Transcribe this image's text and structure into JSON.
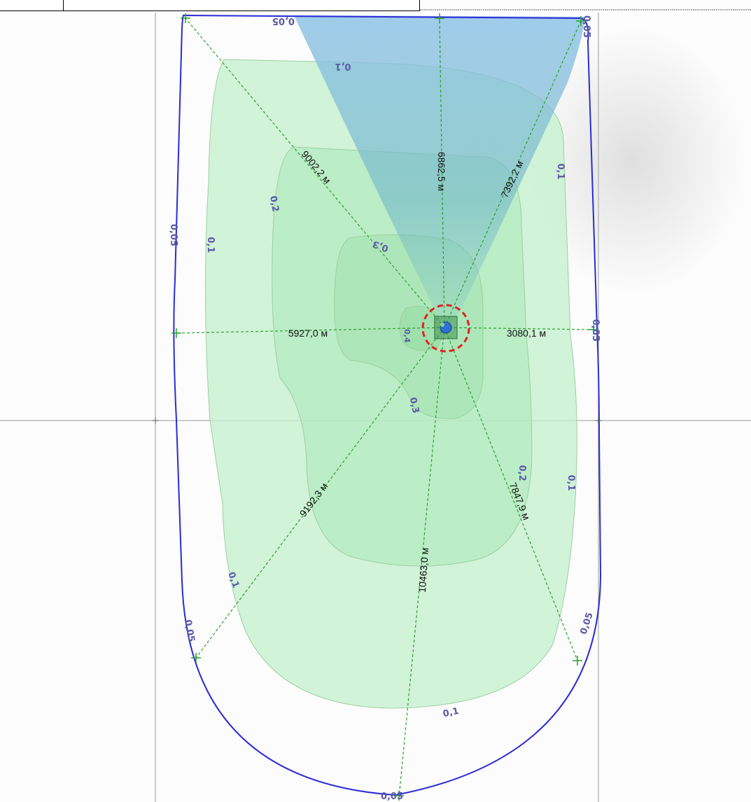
{
  "map": {
    "distances": [
      {
        "label": "9002,2 м"
      },
      {
        "label": "6862,5 м"
      },
      {
        "label": "7392,2 м"
      },
      {
        "label": "5927,0 м"
      },
      {
        "label": "3080,1 м"
      },
      {
        "label": "9192,3 м"
      },
      {
        "label": "10463,0 м"
      },
      {
        "label": "7847,9 м"
      }
    ],
    "isolines": [
      {
        "label": "0,05"
      },
      {
        "label": "0,05"
      },
      {
        "label": "0,05"
      },
      {
        "label": "0,05"
      },
      {
        "label": "0,05"
      },
      {
        "label": "0,05"
      },
      {
        "label": "0,05"
      },
      {
        "label": "0,1"
      },
      {
        "label": "0,1"
      },
      {
        "label": "0,1"
      },
      {
        "label": "0,1"
      },
      {
        "label": "0,1"
      },
      {
        "label": "0,1"
      },
      {
        "label": "0,2"
      },
      {
        "label": "0,2"
      },
      {
        "label": "0,3"
      },
      {
        "label": "0,3"
      },
      {
        "label": "0,4"
      }
    ],
    "colors": {
      "boundary": "#2b2bd6",
      "rays": "#2ca02c",
      "zone_fill": "#b9eec4",
      "zone_stroke": "#9ccf9f",
      "plume": "#8fc3e6",
      "sanitary_circle": "#e02020",
      "iso_label": "#5a5aa8",
      "gridline": "#9a9a9a"
    }
  }
}
